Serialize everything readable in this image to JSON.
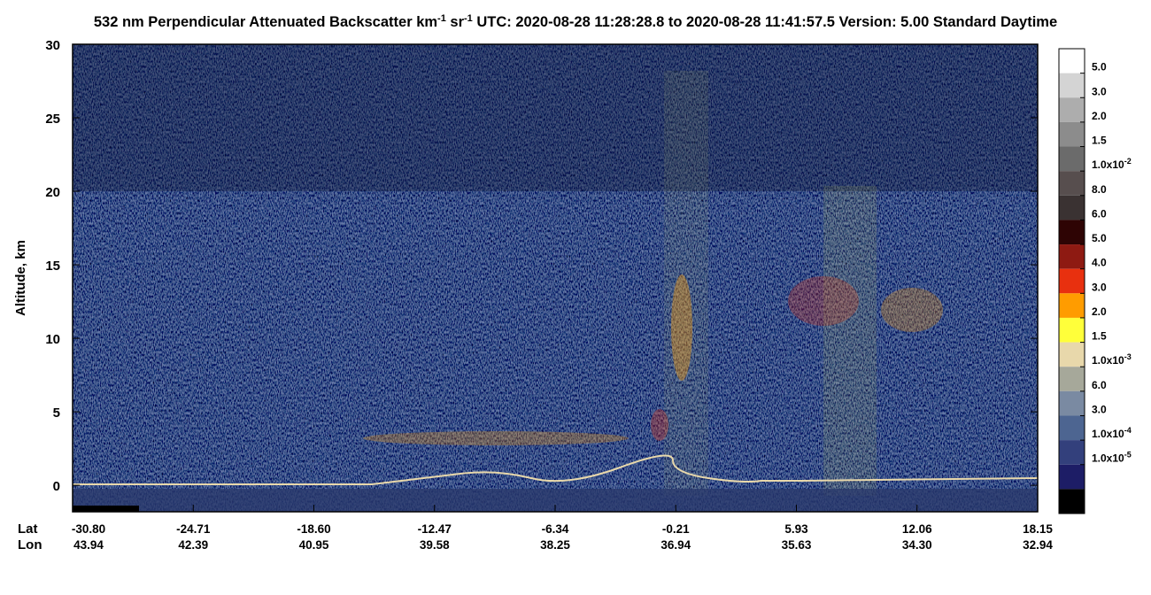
{
  "chart_data": {
    "type": "curtain",
    "title": [
      {
        "text": "532 nm Perpendicular Attenuated Backscatter km"
      },
      {
        "text": "-1",
        "superscript": true
      },
      {
        "text": " sr"
      },
      {
        "text": "-1",
        "superscript": true
      },
      {
        "text": "  UTC: 2020-08-28 11:28:28.8 to 2020-08-28 11:41:57.5  Version: 5.00 Standard Daytime"
      }
    ],
    "y_label": "Altitude, km",
    "ylim": [
      -1.8,
      30
    ],
    "yticks": [
      0,
      5,
      10,
      15,
      20,
      25,
      30
    ],
    "x_rows": [
      {
        "name": "Lat",
        "labels": [
          "-30.80",
          "-24.71",
          "-18.60",
          "-12.47",
          "-6.34",
          "-0.21",
          "5.93",
          "12.06",
          "18.15"
        ]
      },
      {
        "name": "Lon",
        "labels": [
          "43.94",
          "42.39",
          "40.95",
          "39.58",
          "38.25",
          "36.94",
          "35.63",
          "34.30",
          "32.94"
        ]
      }
    ],
    "colorbar": {
      "colors": [
        "#ffffff",
        "#d4d4d4",
        "#adadad",
        "#8c8c8c",
        "#6b6b6b",
        "#574e4e",
        "#3a3232",
        "#2e0404",
        "#8e1a12",
        "#e8300f",
        "#ff9c00",
        "#ffff3a",
        "#e8d8ab",
        "#a6a89a",
        "#7a8aa2",
        "#4d6591",
        "#33407c",
        "#1d1d66",
        "#000000"
      ],
      "labels": [
        {
          "base": "5.0"
        },
        {
          "base": "3.0"
        },
        {
          "base": "2.0"
        },
        {
          "base": "1.5"
        },
        {
          "base": "1.0x10",
          "exp": "-2"
        },
        {
          "base": "8.0"
        },
        {
          "base": "6.0"
        },
        {
          "base": "5.0"
        },
        {
          "base": "4.0"
        },
        {
          "base": "3.0"
        },
        {
          "base": "2.0"
        },
        {
          "base": "1.5"
        },
        {
          "base": "1.0x10",
          "exp": "-3"
        },
        {
          "base": "6.0"
        },
        {
          "base": "3.0"
        },
        {
          "base": "1.0x10",
          "exp": "-4"
        },
        {
          "base": "1.0x10",
          "exp": "-5"
        }
      ]
    }
  }
}
